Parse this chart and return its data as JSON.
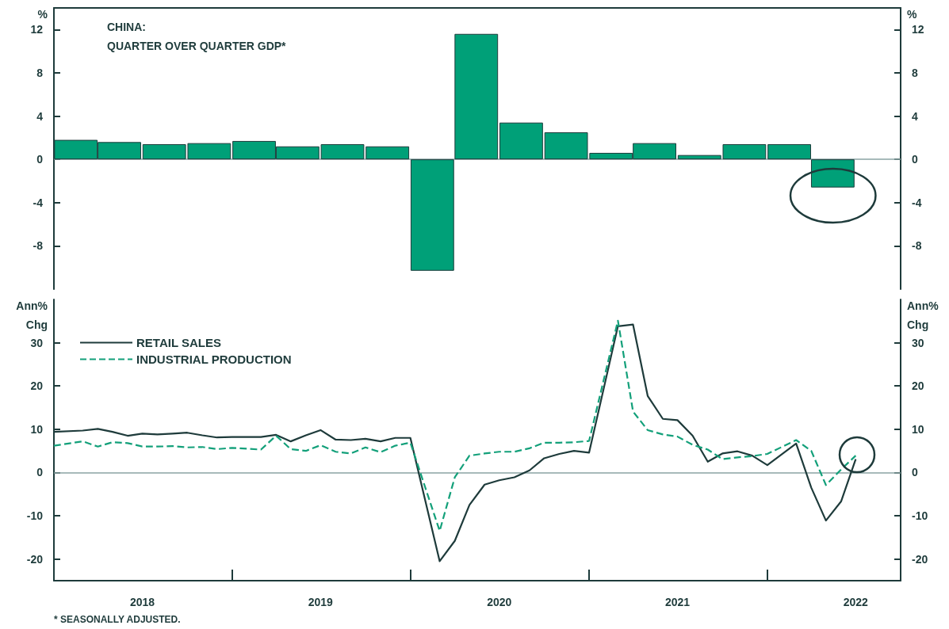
{
  "chart_data": [
    {
      "type": "bar",
      "title": "CHINA:",
      "subtitle": "QUARTER OVER QUARTER GDP*",
      "ylabel": "%",
      "y2label": "%",
      "x": [
        "2018-02-15",
        "2018-05-15",
        "2018-08-15",
        "2018-11-15",
        "2019-02-15",
        "2019-05-15",
        "2019-08-15",
        "2019-11-15",
        "2020-02-15",
        "2020-05-15",
        "2020-08-15",
        "2020-11-15",
        "2021-02-15",
        "2021-05-15",
        "2021-08-15",
        "2021-11-15",
        "2022-02-15",
        "2022-05-15"
      ],
      "values": [
        1.8,
        1.6,
        1.4,
        1.5,
        1.7,
        1.2,
        1.4,
        1.2,
        -10.3,
        11.6,
        3.4,
        2.5,
        0.6,
        1.5,
        0.4,
        1.4,
        1.4,
        -2.6
      ],
      "color": "#00a078",
      "xlim": [
        "2018-01-01",
        "2022-10-01"
      ],
      "ylim": [
        -12,
        14
      ],
      "yticks": [
        -8,
        -4,
        0,
        4,
        8,
        12
      ],
      "y2lim": [
        -12,
        14
      ],
      "y2ticks": [
        -8,
        -4,
        0,
        4,
        8,
        12
      ],
      "ref_lines": [
        {
          "axis": "y",
          "value": 0,
          "color": "#8aa3a3"
        }
      ],
      "tick_labels": "y",
      "grid": false,
      "legend": false
    },
    {
      "type": "line",
      "ylabel": "Ann%\nChg",
      "y2label": "Ann%\nChg",
      "marker": "none",
      "series": [
        {
          "name": "RETAIL SALES",
          "color": "#1e3b3b",
          "line_style": "solid",
          "x": [
            "2018-01",
            "2018-03",
            "2018-04",
            "2018-05",
            "2018-06",
            "2018-07",
            "2018-08",
            "2018-09",
            "2018-10",
            "2018-11",
            "2018-12",
            "2019-01",
            "2019-03",
            "2019-04",
            "2019-05",
            "2019-06",
            "2019-07",
            "2019-08",
            "2019-09",
            "2019-10",
            "2019-11",
            "2019-12",
            "2020-01",
            "2020-03",
            "2020-04",
            "2020-05",
            "2020-06",
            "2020-07",
            "2020-08",
            "2020-09",
            "2020-10",
            "2020-11",
            "2020-12",
            "2021-01",
            "2021-03",
            "2021-04",
            "2021-05",
            "2021-06",
            "2021-07",
            "2021-08",
            "2021-09",
            "2021-10",
            "2021-11",
            "2021-12",
            "2022-01",
            "2022-03",
            "2022-04",
            "2022-05",
            "2022-06",
            "2022-07"
          ],
          "values": [
            9.4,
            9.7,
            10.1,
            9.4,
            8.5,
            9.0,
            8.8,
            9.0,
            9.2,
            8.6,
            8.1,
            8.2,
            8.2,
            8.7,
            7.2,
            8.6,
            9.8,
            7.6,
            7.5,
            7.8,
            7.2,
            8.0,
            8.0,
            -20.5,
            -15.8,
            -7.5,
            -2.8,
            -1.8,
            -1.1,
            0.5,
            3.3,
            4.3,
            5.0,
            4.6,
            33.8,
            34.2,
            17.7,
            12.4,
            12.1,
            8.5,
            2.5,
            4.4,
            4.9,
            3.9,
            1.7,
            6.7,
            -3.5,
            -11.1,
            -6.7,
            3.1
          ]
        },
        {
          "name": "INDUSTRIAL PRODUCTION",
          "color": "#13a07a",
          "line_style": "dashed",
          "x": [
            "2018-01",
            "2018-03",
            "2018-04",
            "2018-05",
            "2018-06",
            "2018-07",
            "2018-08",
            "2018-09",
            "2018-10",
            "2018-11",
            "2018-12",
            "2019-01",
            "2019-03",
            "2019-04",
            "2019-05",
            "2019-06",
            "2019-07",
            "2019-08",
            "2019-09",
            "2019-10",
            "2019-11",
            "2019-12",
            "2020-01",
            "2020-03",
            "2020-04",
            "2020-05",
            "2020-06",
            "2020-07",
            "2020-08",
            "2020-09",
            "2020-10",
            "2020-11",
            "2020-12",
            "2021-01",
            "2021-03",
            "2021-04",
            "2021-05",
            "2021-06",
            "2021-07",
            "2021-08",
            "2021-09",
            "2021-10",
            "2021-11",
            "2021-12",
            "2022-01",
            "2022-03",
            "2022-04",
            "2022-05",
            "2022-06",
            "2022-07"
          ],
          "values": [
            6.2,
            7.2,
            6.0,
            7.0,
            6.8,
            6.0,
            6.0,
            6.1,
            5.8,
            5.9,
            5.4,
            5.7,
            5.3,
            8.5,
            5.4,
            5.0,
            6.3,
            4.8,
            4.4,
            5.8,
            4.7,
            6.2,
            6.9,
            -13.5,
            -1.1,
            3.9,
            4.4,
            4.8,
            4.8,
            5.6,
            6.9,
            6.9,
            7.0,
            7.3,
            35.1,
            14.1,
            9.8,
            8.8,
            8.3,
            6.4,
            5.3,
            3.1,
            3.5,
            3.8,
            4.3,
            7.5,
            5.0,
            -2.9,
            0.7,
            3.9
          ]
        }
      ],
      "xlim": [
        "2018-01-01",
        "2022-10-01"
      ],
      "xticks": [
        {
          "value": "2018-07-01",
          "label": "2018"
        },
        {
          "value": "2019-01-01",
          "label": null
        },
        {
          "value": "2019-07-01",
          "label": "2019"
        },
        {
          "value": "2020-01-01",
          "label": null
        },
        {
          "value": "2020-07-01",
          "label": "2020"
        },
        {
          "value": "2021-01-01",
          "label": null
        },
        {
          "value": "2021-07-01",
          "label": "2021"
        },
        {
          "value": "2022-01-01",
          "label": null
        },
        {
          "value": "2022-07-01",
          "label": "2022"
        }
      ],
      "ylim": [
        -25,
        40
      ],
      "yticks": [
        -20,
        -10,
        0,
        10,
        20,
        30
      ],
      "y2lim": [
        -25,
        40
      ],
      "y2ticks": [
        -20,
        -10,
        0,
        10,
        20,
        30
      ],
      "ref_lines": [
        {
          "axis": "y",
          "value": 0,
          "color": "#8aa3a3"
        }
      ],
      "grid": false,
      "legend": "top left",
      "annotations": [
        "* SEASONALLY ADJUSTED."
      ]
    }
  ]
}
